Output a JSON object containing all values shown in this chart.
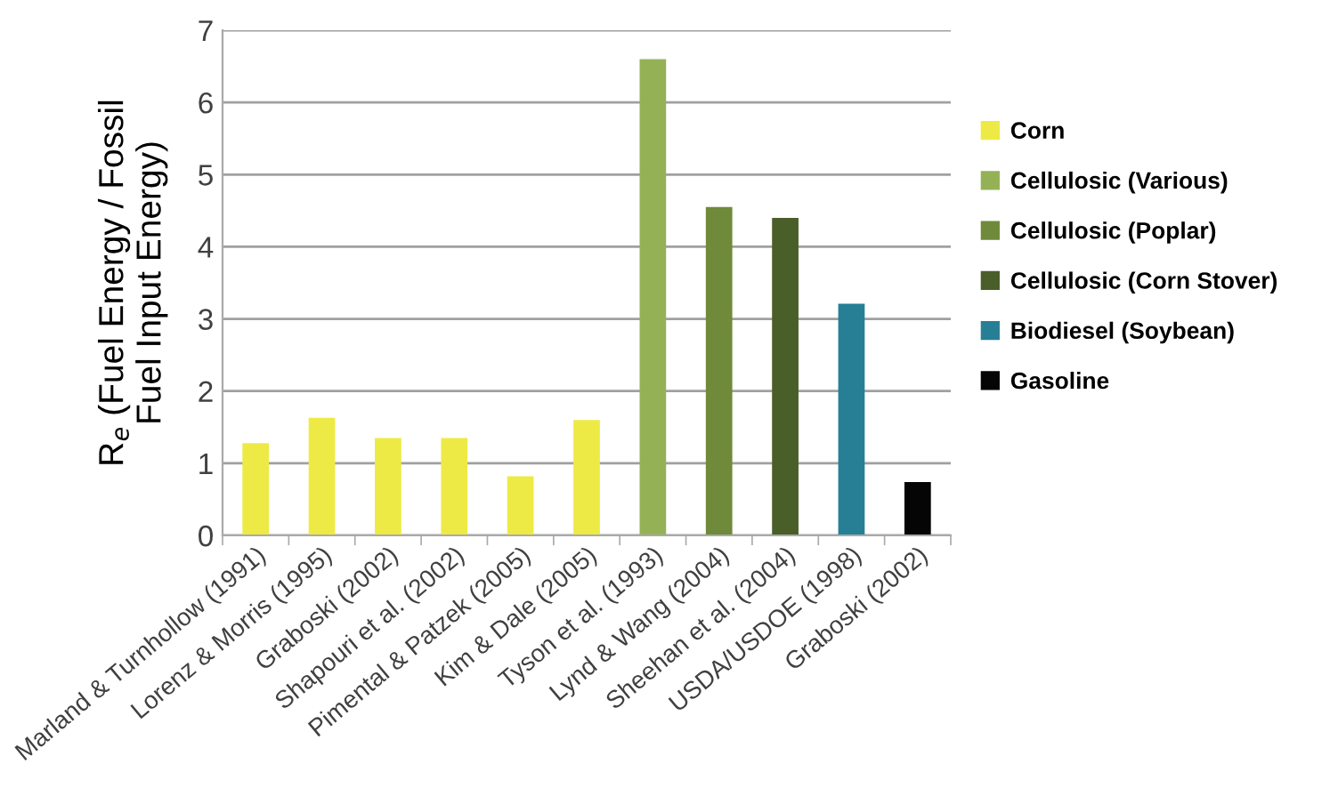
{
  "chart_data": {
    "type": "bar",
    "ylabel": "R$_{e}$ (Fuel Energy / Fossil\nFuel Input Energy)",
    "categories": [
      "Marland & Turnhollow (1991)",
      "Lorenz & Morris (1995)",
      "Graboski (2002)",
      "Shapouri et al. (2002)",
      "Pimental & Patzek (2005)",
      "Kim & Dale (2005)",
      "Tyson et al. (1993)",
      "Lynd & Wang (2004)",
      "Sheehan et al. (2004)",
      "USDA/USDOE (1998)",
      "Graboski (2002)"
    ],
    "series": [
      {
        "name": "Corn",
        "color": "#eeea45",
        "values": [
          1.28,
          1.63,
          1.35,
          1.35,
          0.82,
          1.6,
          null,
          null,
          null,
          null,
          null
        ]
      },
      {
        "name": "Cellulosic (Various)",
        "color": "#94b255",
        "values": [
          null,
          null,
          null,
          null,
          null,
          null,
          6.6,
          null,
          null,
          null,
          null
        ]
      },
      {
        "name": "Cellulosic (Poplar)",
        "color": "#6f8a3a",
        "values": [
          null,
          null,
          null,
          null,
          null,
          null,
          null,
          4.55,
          null,
          null,
          null
        ]
      },
      {
        "name": "Cellulosic (Corn Stover)",
        "color": "#4a5e2a",
        "values": [
          null,
          null,
          null,
          null,
          null,
          null,
          null,
          null,
          4.4,
          null,
          null
        ]
      },
      {
        "name": "Biodiesel (Soybean)",
        "color": "#277f95",
        "values": [
          null,
          null,
          null,
          null,
          null,
          null,
          null,
          null,
          null,
          3.21,
          null
        ]
      },
      {
        "name": "Gasoline",
        "color": "#050505",
        "values": [
          null,
          null,
          null,
          null,
          null,
          null,
          null,
          null,
          null,
          null,
          0.74
        ]
      }
    ],
    "ylim": [
      0,
      7
    ],
    "yticks": [
      0,
      1,
      2,
      3,
      4,
      5,
      6,
      7
    ],
    "grid": "y",
    "legend": "right"
  }
}
